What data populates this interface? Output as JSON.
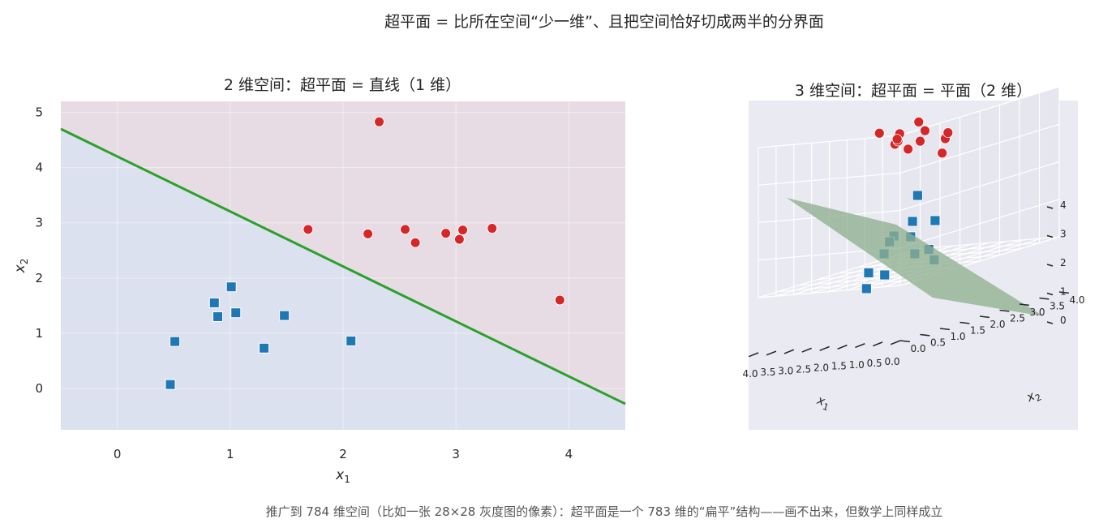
{
  "suptitle": "超平面 = 比所在空间“少一维”、且把空间恰好切成两半的分界面",
  "footer": "推广到 784 维空间（比如一张 28×28 灰度图的像素）：超平面是一个 783 维的“扁平”结构——画不出来，但数学上同样成立",
  "colors": {
    "class_a": "#1f77b4",
    "class_b": "#d62728",
    "line": "#2ca02c",
    "region_a": "#dbe1ee",
    "region_b": "#e8dce4",
    "plane": "#8fb08f",
    "panel3d": "#eaeaf2"
  },
  "chart_data": [
    {
      "type": "scatter",
      "title": "2 维空间：超平面 = 直线（1 维）",
      "xlabel": "x1",
      "ylabel": "x2",
      "xlim": [
        -0.5,
        4.5
      ],
      "ylim": [
        -0.75,
        5.2
      ],
      "xticks": [
        0,
        1,
        2,
        3,
        4
      ],
      "yticks": [
        0,
        1,
        2,
        3,
        4,
        5
      ],
      "grid": true,
      "decision_line": {
        "x": [
          -0.5,
          4.5
        ],
        "y": [
          4.7,
          -0.28
        ]
      },
      "series": [
        {
          "marker": "square",
          "points": [
            [
              0.47,
              0.07
            ],
            [
              0.51,
              0.85
            ],
            [
              0.86,
              1.55
            ],
            [
              0.89,
              1.3
            ],
            [
              1.01,
              1.84
            ],
            [
              1.05,
              1.37
            ],
            [
              1.3,
              0.73
            ],
            [
              1.48,
              1.32
            ],
            [
              2.07,
              0.86
            ]
          ]
        },
        {
          "marker": "circle",
          "points": [
            [
              1.69,
              2.88
            ],
            [
              2.22,
              2.8
            ],
            [
              2.32,
              4.83
            ],
            [
              2.55,
              2.88
            ],
            [
              2.64,
              2.64
            ],
            [
              2.91,
              2.81
            ],
            [
              3.03,
              2.7
            ],
            [
              3.06,
              2.87
            ],
            [
              3.32,
              2.9
            ],
            [
              3.92,
              1.6
            ]
          ]
        }
      ]
    },
    {
      "type": "scatter3d",
      "title": "3 维空间：超平面 = 平面（2 维）",
      "xlabel": "x1",
      "ylabel": "x2",
      "xlim": [
        0,
        4
      ],
      "ylim": [
        0,
        4
      ],
      "zlim": [
        0,
        4
      ],
      "xticks": [
        "0.0",
        "0.5",
        "1.0",
        "1.5",
        "2.0",
        "2.5",
        "3.0",
        "3.5",
        "4.0"
      ],
      "yticks": [
        "0.0",
        "0.5",
        "1.0",
        "1.5",
        "2.0",
        "2.5",
        "3.0",
        "3.5",
        "4.0"
      ],
      "zticks": [
        "0",
        "1",
        "2",
        "3",
        "4"
      ],
      "plane": true,
      "series": [
        {
          "marker": "square",
          "points": [
            [
              1.0,
              1.2,
              1.4
            ],
            [
              0.7,
              1.5,
              1.3
            ],
            [
              1.3,
              1.0,
              1.1
            ],
            [
              1.2,
              0.8,
              1.0
            ],
            [
              1.5,
              1.6,
              0.9
            ],
            [
              0.6,
              0.9,
              0.6
            ],
            [
              1.1,
              1.7,
              0.5
            ],
            [
              0.5,
              1.3,
              0.3
            ],
            [
              1.8,
              1.2,
              0.6
            ],
            [
              1.0,
              0.5,
              0.2
            ],
            [
              1.4,
              0.4,
              -0.1
            ],
            [
              1.9,
              0.9,
              0.2
            ],
            [
              2.2,
              2.4,
              1.8
            ]
          ]
        },
        {
          "marker": "circle",
          "points": [
            [
              3.0,
              2.6,
              3.3
            ],
            [
              2.8,
              3.0,
              3.1
            ],
            [
              3.2,
              2.8,
              3.2
            ],
            [
              3.4,
              2.9,
              3.1
            ],
            [
              3.0,
              3.3,
              3.3
            ],
            [
              3.5,
              2.6,
              3.5
            ],
            [
              3.4,
              3.5,
              3.5
            ],
            [
              2.8,
              3.7,
              3.1
            ],
            [
              3.6,
              3.2,
              3.3
            ],
            [
              3.1,
              3.9,
              2.9
            ],
            [
              3.7,
              3.5,
              2.8
            ],
            [
              3.3,
              4.0,
              2.5
            ]
          ]
        }
      ]
    }
  ]
}
